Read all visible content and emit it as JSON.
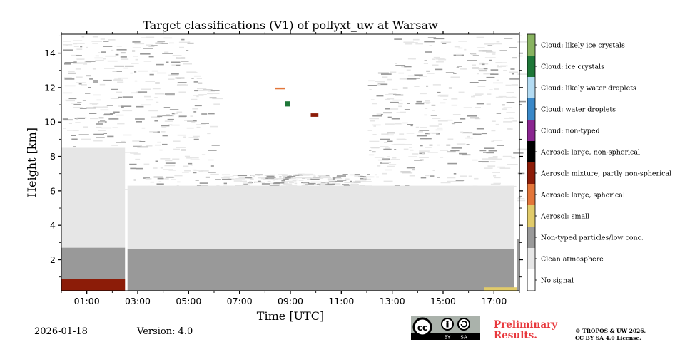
{
  "chart_data": {
    "type": "heatmap",
    "title": "Target classifications (V1) of pollyxt_uw at Warsaw",
    "xlabel": "Time [UTC]",
    "ylabel": "Height [km]",
    "xlim_hours": [
      0.0,
      18.0
    ],
    "ylim_km": [
      0.2,
      15.1
    ],
    "x_ticks": [
      {
        "value": 1,
        "label": "01:00"
      },
      {
        "value": 3,
        "label": "03:00"
      },
      {
        "value": 5,
        "label": "05:00"
      },
      {
        "value": 7,
        "label": "07:00"
      },
      {
        "value": 9,
        "label": "09:00"
      },
      {
        "value": 11,
        "label": "11:00"
      },
      {
        "value": 13,
        "label": "13:00"
      },
      {
        "value": 15,
        "label": "15:00"
      },
      {
        "value": 17,
        "label": "17:00"
      }
    ],
    "y_ticks": [
      {
        "value": 2,
        "label": "2"
      },
      {
        "value": 4,
        "label": "4"
      },
      {
        "value": 6,
        "label": "6"
      },
      {
        "value": 8,
        "label": "8"
      },
      {
        "value": 10,
        "label": "10"
      },
      {
        "value": 12,
        "label": "12"
      },
      {
        "value": 14,
        "label": "14"
      }
    ],
    "classes": [
      {
        "label": "No signal",
        "color": "#ffffff"
      },
      {
        "label": "Clean atmosphere",
        "color": "#e6e6e6"
      },
      {
        "label": "Non-typed particles/low conc.",
        "color": "#999999"
      },
      {
        "label": "Aerosol: small",
        "color": "#e1cb6a"
      },
      {
        "label": "Aerosol: large, spherical",
        "color": "#e3763a"
      },
      {
        "label": "Aerosol: mixture, partly non-spherical",
        "color": "#8c1c08"
      },
      {
        "label": "Aerosol: large, non-spherical",
        "color": "#000000"
      },
      {
        "label": "Cloud: non-typed",
        "color": "#8a2590"
      },
      {
        "label": "Cloud: water droplets",
        "color": "#3a88c8"
      },
      {
        "label": "Cloud: likely water droplets",
        "color": "#b3dbf2"
      },
      {
        "label": "Cloud: ice crystals",
        "color": "#1e7738"
      },
      {
        "label": "Cloud: likely ice crystals",
        "color": "#88b360"
      }
    ],
    "regions": [
      {
        "class": "Non-typed particles/low conc.",
        "t_start": 0.0,
        "t_end": 2.5,
        "h_bottom": 0.2,
        "h_top": 2.7
      },
      {
        "class": "Clean atmosphere",
        "t_start": 0.0,
        "t_end": 2.5,
        "h_bottom": 2.7,
        "h_top": 8.5
      },
      {
        "class": "Non-typed particles/low conc.",
        "t_start": 2.6,
        "t_end": 17.8,
        "h_bottom": 0.2,
        "h_top": 2.6
      },
      {
        "class": "Clean atmosphere",
        "t_start": 2.6,
        "t_end": 17.8,
        "h_bottom": 2.6,
        "h_top": 6.3
      },
      {
        "class": "Non-typed particles/low conc.",
        "t_start": 17.9,
        "t_end": 18.0,
        "h_bottom": 0.2,
        "h_top": 3.2
      },
      {
        "class": "Aerosol: mixture, partly non-spherical",
        "t_start": 0.0,
        "t_end": 2.5,
        "h_bottom": 0.2,
        "h_top": 0.9
      },
      {
        "class": "Aerosol: small",
        "t_start": 16.6,
        "t_end": 17.9,
        "h_bottom": 0.2,
        "h_top": 0.4
      },
      {
        "class": "Cloud: ice crystals",
        "t_start": 8.8,
        "t_end": 9.0,
        "h_bottom": 10.9,
        "h_top": 11.2
      },
      {
        "class": "Aerosol: mixture, partly non-spherical",
        "t_start": 9.8,
        "t_end": 10.1,
        "h_bottom": 10.3,
        "h_top": 10.5
      },
      {
        "class": "Aerosol: large, spherical",
        "t_start": 8.4,
        "t_end": 8.8,
        "h_bottom": 11.9,
        "h_top": 12.0
      }
    ]
  },
  "footer": {
    "date": "2026-01-18",
    "version": "Version: 4.0",
    "preliminary": [
      "Preliminary",
      "Results."
    ],
    "copyright": [
      "© TROPOS & UW 2026.",
      "CC BY SA 4.0 License."
    ],
    "badge": {
      "cc": "cc",
      "by": "BY",
      "sa": "SA"
    }
  }
}
